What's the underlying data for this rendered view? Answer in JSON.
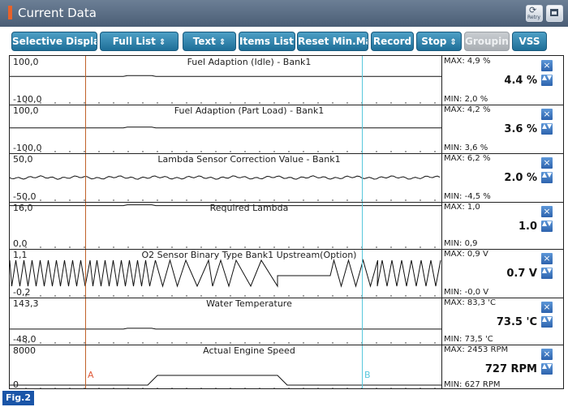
{
  "window": {
    "title": "Current Data",
    "retry_label": "Retry"
  },
  "toolbar": {
    "buttons": [
      {
        "label": "Selective Display",
        "dropdown": true,
        "enabled": true
      },
      {
        "label": "Full List",
        "dropdown": true,
        "enabled": true
      },
      {
        "label": "Text",
        "dropdown": true,
        "enabled": true
      },
      {
        "label": "Items List",
        "dropdown": true,
        "enabled": true
      },
      {
        "label": "Reset Min.Max",
        "dropdown": false,
        "enabled": true
      },
      {
        "label": "Record",
        "dropdown": false,
        "enabled": true
      },
      {
        "label": "Stop",
        "dropdown": true,
        "enabled": true
      },
      {
        "label": "Grouping",
        "dropdown": false,
        "enabled": false
      },
      {
        "label": "VSS",
        "dropdown": false,
        "enabled": true
      }
    ]
  },
  "cursors": {
    "a_label": "A",
    "b_label": "B",
    "a_color": "#c0622a",
    "b_color": "#58c8dd"
  },
  "rows": [
    {
      "title": "Fuel Adaption (Idle) - Bank1",
      "y_top": "100,0",
      "y_bottom": "-100,0",
      "max": "MAX:  4,9 %",
      "current": "4.4 %",
      "min": "MIN:  2,0 %",
      "signal": "flat",
      "level": 0.58
    },
    {
      "title": "Fuel Adaption (Part Load) - Bank1",
      "y_top": "100,0",
      "y_bottom": "-100,0",
      "max": "MAX:  4,2 %",
      "current": "3.6 %",
      "min": "MIN:  3,6 %",
      "signal": "flat",
      "level": 0.52
    },
    {
      "title": "Lambda Sensor Correction Value - Bank1",
      "y_top": "50,0",
      "y_bottom": "-50,0",
      "max": "MAX:  6,2 %",
      "current": "2.0 %",
      "min": "MIN:  -4,5 %",
      "signal": "noise",
      "level": 0.5
    },
    {
      "title": "Required Lambda",
      "y_top": "16,0",
      "y_bottom": "0,0",
      "max": "MAX:  1,0",
      "current": "1.0",
      "min": "MIN:  0,9",
      "signal": "flat",
      "level": 0.92
    },
    {
      "title": "O2 Sensor Binary Type Bank1 Upstream(Option)",
      "y_top": "1,1",
      "y_bottom": "-0,2",
      "max": "MAX:  0,9 V",
      "current": "0.7 V",
      "min": "MIN:  -0,0 V",
      "signal": "o2",
      "level": 0.5
    },
    {
      "title": "Water Temperature",
      "y_top": "143,3",
      "y_bottom": "-48,0",
      "max": "MAX:  83,3 'C",
      "current": "73.5 'C",
      "min": "MIN:  73,5 'C",
      "signal": "flat",
      "level": 0.33
    },
    {
      "title": "Actual Engine Speed",
      "y_top": "8000",
      "y_bottom": "0",
      "max": "MAX:  2453 RPM",
      "current": "727 RPM",
      "min": "MIN:  627 RPM",
      "signal": "rpm",
      "level": 0.9
    }
  ],
  "footer": {
    "figure_label": "Fig.2"
  },
  "colors": {
    "titlebar": "#56698a",
    "button": "#2f84ad",
    "button_disabled": "#b9bdc1",
    "trace": "#111111"
  }
}
